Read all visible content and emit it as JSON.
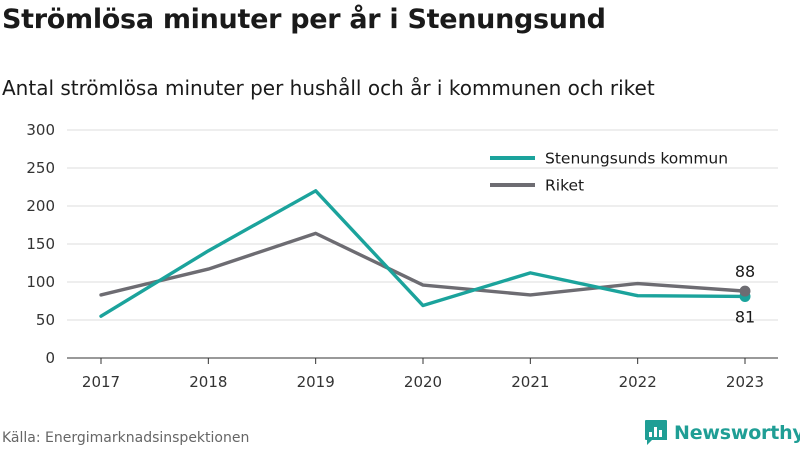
{
  "title": "Strömlösa minuter per år i Stenungsund",
  "subtitle": "Antal strömlösa minuter per hushåll och år i kommunen och riket",
  "source": "Källa: Energimarknadsinspektionen",
  "brand": {
    "name": "Newsworthy",
    "icon": "bar-chart-logo-icon",
    "color": "#1f9e95"
  },
  "chart_data": {
    "type": "line",
    "title": "Strömlösa minuter per år i Stenungsund",
    "subtitle": "Antal strömlösa minuter per hushåll och år i kommunen och riket",
    "x": [
      "2017",
      "2018",
      "2019",
      "2020",
      "2021",
      "2022",
      "2023"
    ],
    "series": [
      {
        "name": "Stenungsunds kommun",
        "color": "#1ba39c",
        "values": [
          55,
          141,
          220,
          69,
          112,
          82,
          81
        ],
        "end_label": "81"
      },
      {
        "name": "Riket",
        "color": "#6d6c72",
        "values": [
          83,
          117,
          164,
          96,
          83,
          98,
          88
        ],
        "end_label": "88"
      }
    ],
    "yticks": [
      "0",
      "50",
      "100",
      "150",
      "200",
      "250",
      "300"
    ],
    "ylim": [
      0,
      300
    ],
    "grid": true,
    "legend_position": "top-right"
  }
}
